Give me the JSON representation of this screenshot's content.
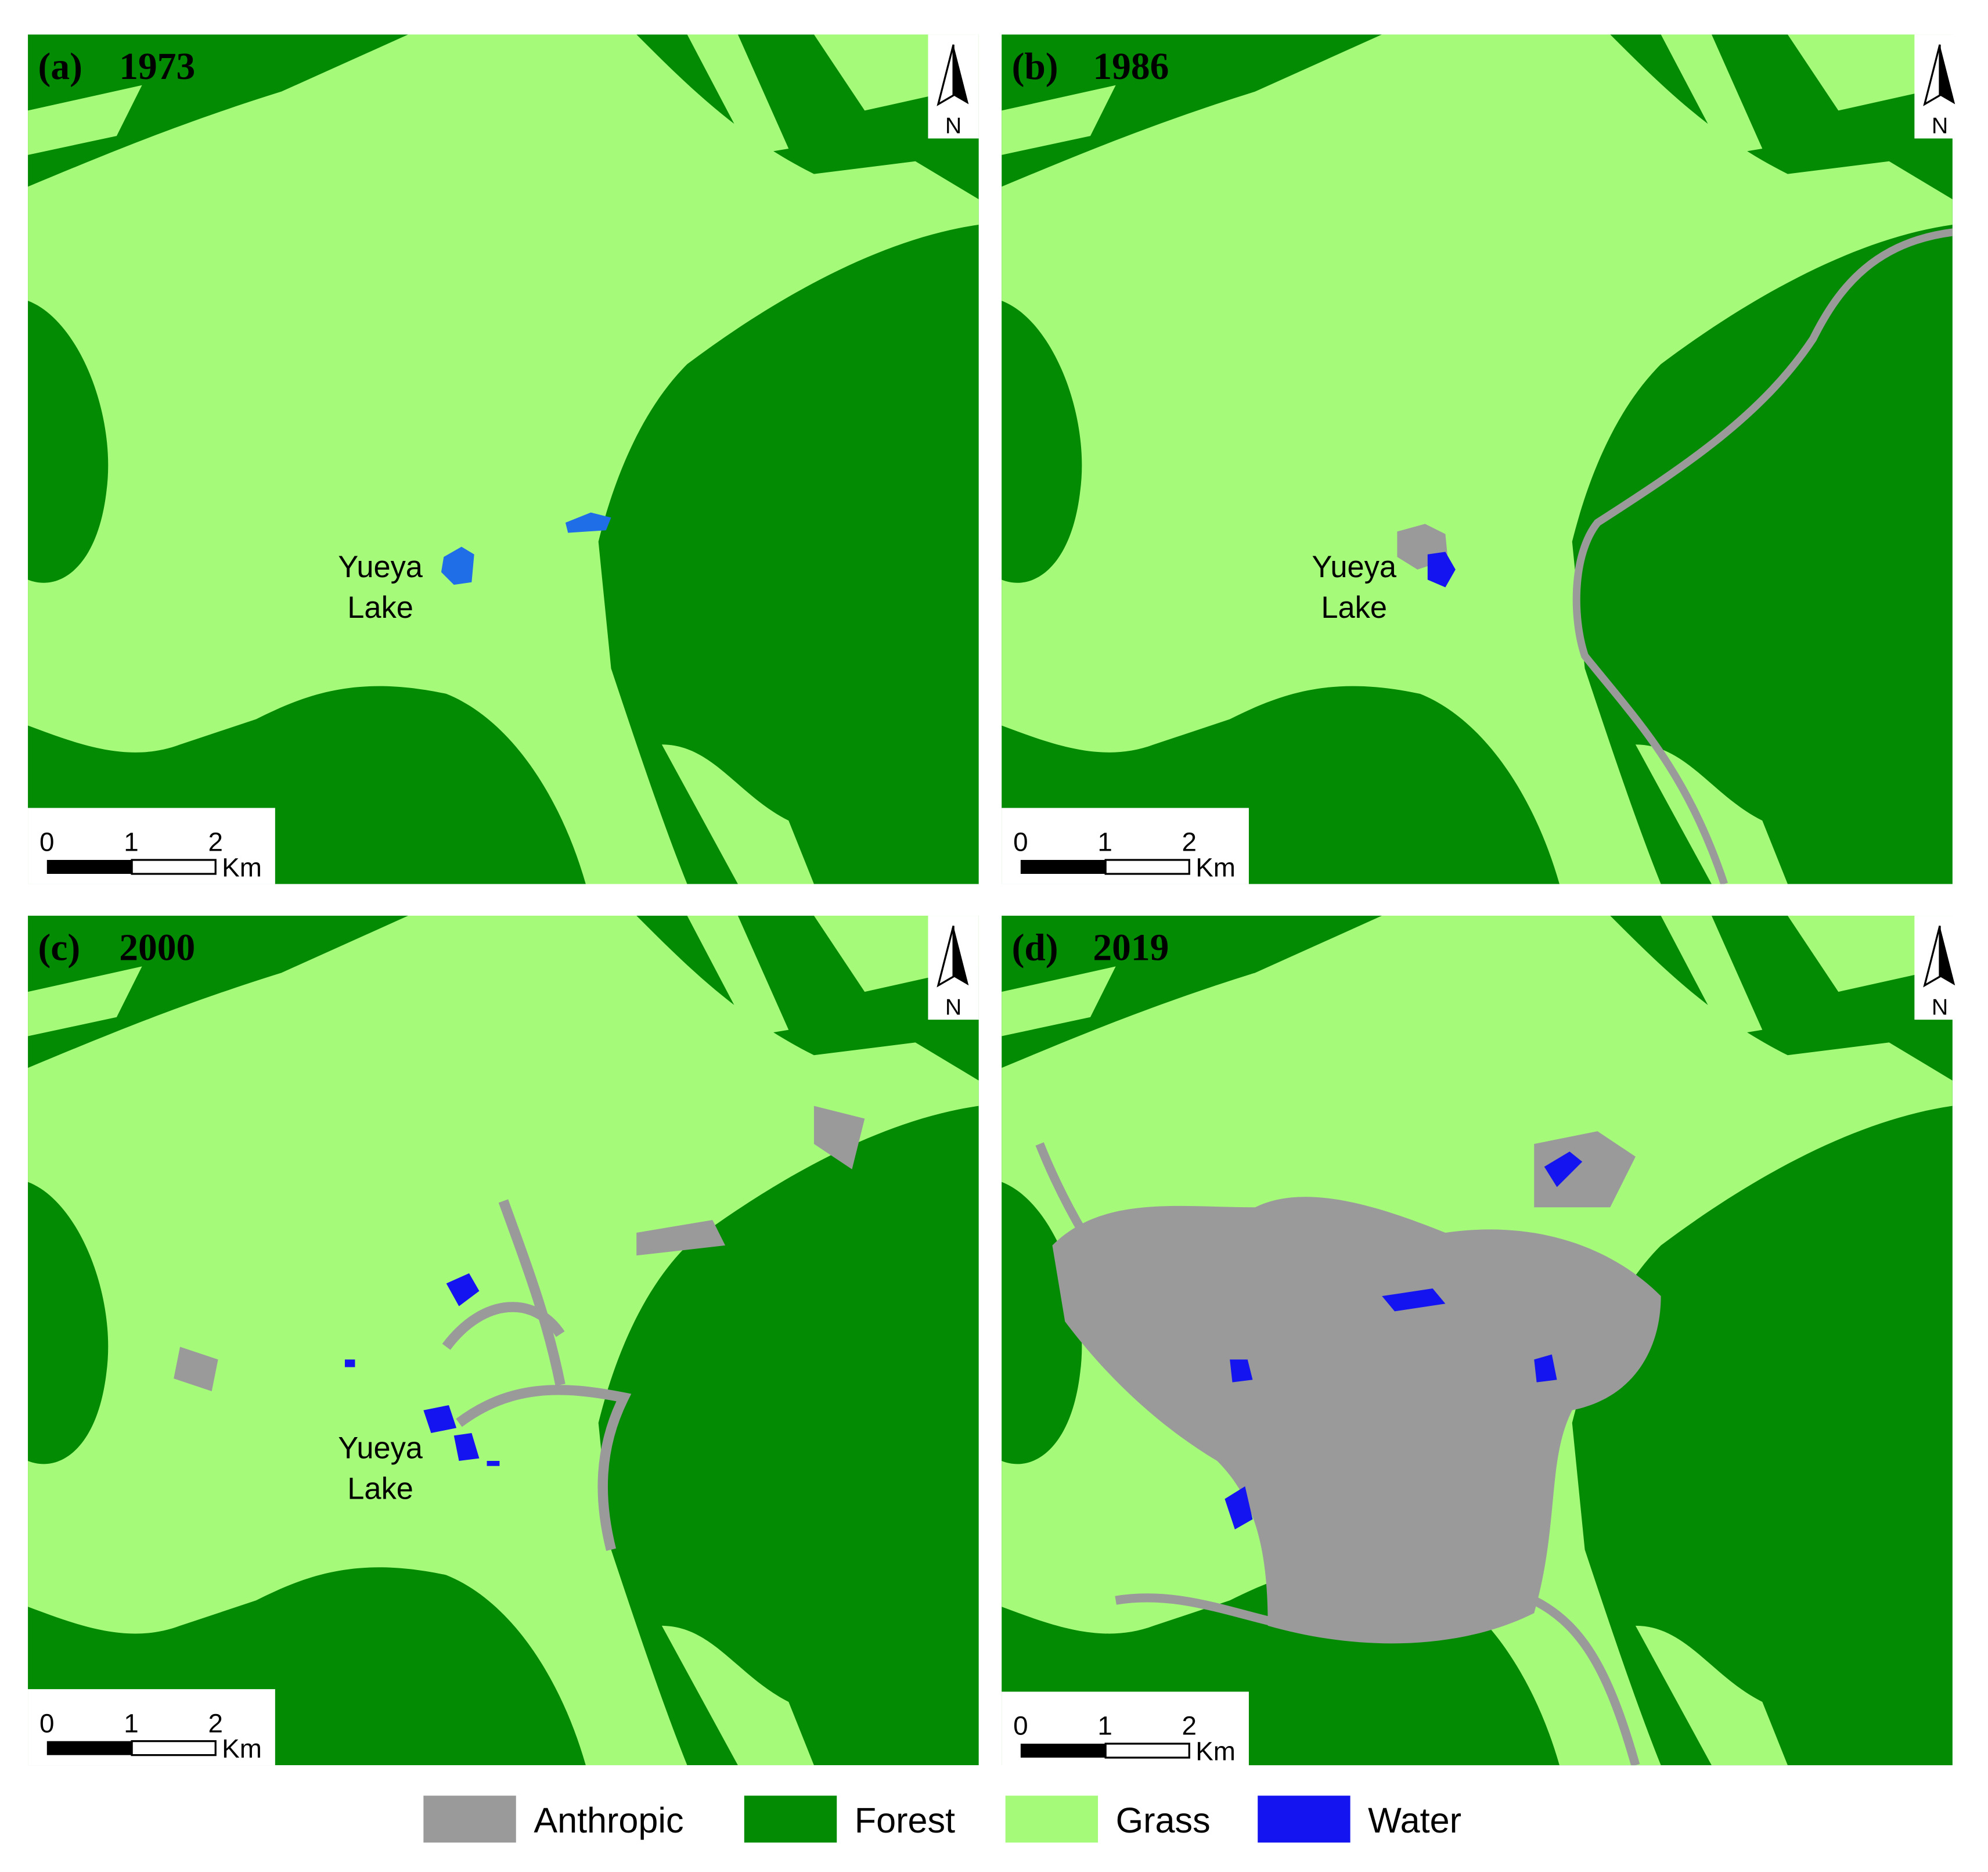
{
  "panels": [
    {
      "label": "(a)",
      "year": "1973",
      "lake_label": [
        "Yueya",
        "Lake"
      ]
    },
    {
      "label": "(b)",
      "year": "1986",
      "lake_label": [
        "Yueya",
        "Lake"
      ]
    },
    {
      "label": "(c)",
      "year": "2000",
      "lake_label": [
        "Yueya",
        "Lake"
      ]
    },
    {
      "label": "(d)",
      "year": "2019"
    }
  ],
  "north": "N",
  "scale_bar": {
    "ticks": [
      "0",
      "1",
      "2"
    ],
    "unit": "Km"
  },
  "legend": [
    {
      "name": "Anthropic",
      "color": "#9a9a9a"
    },
    {
      "name": "Forest",
      "color": "#038c03"
    },
    {
      "name": "Grass",
      "color": "#a5fb79"
    },
    {
      "name": "Water",
      "color": "#1414f0"
    }
  ]
}
